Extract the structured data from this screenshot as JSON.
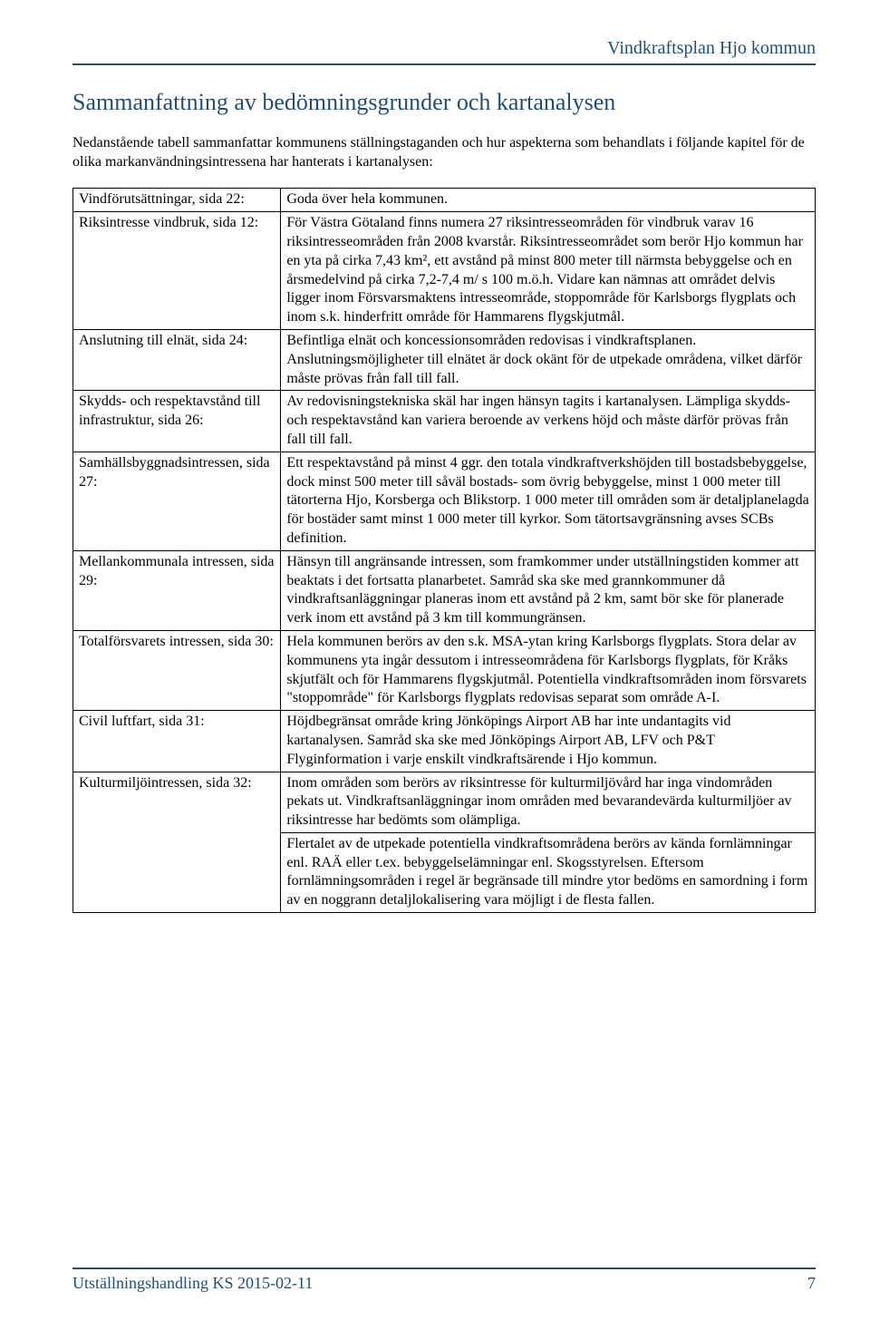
{
  "colors": {
    "accent": "#1e4e79",
    "text": "#000000",
    "background": "#ffffff",
    "border": "#000000"
  },
  "typography": {
    "body_font": "Times New Roman",
    "body_size_pt": 12,
    "h1_size_pt": 20,
    "header_size_pt": 15
  },
  "header": {
    "doc_title": "Vindkraftsplan Hjo kommun"
  },
  "section": {
    "title": "Sammanfattning av bedömningsgrunder och kartanalysen",
    "intro": "Nedanstående tabell sammanfattar kommunens ställningstaganden och hur aspekterna som behandlats i följande kapitel för de olika markanvändningsintressena har hanterats i kartanalysen:"
  },
  "table": {
    "rows": [
      {
        "left": "Vindförutsättningar, sida 22:",
        "right": "Goda över hela kommunen."
      },
      {
        "left": "Riksintresse vindbruk, sida 12:",
        "right": "För Västra Götaland finns numera 27 riksintresseområden för vindbruk varav 16 riksintresseområden från 2008 kvarstår. Riksintresseområdet som berör Hjo kommun har en yta på cirka 7,43 km², ett avstånd på minst 800 meter till närmsta bebyggelse och en årsmedelvind på cirka 7,2-7,4 m/ s 100 m.ö.h. Vidare kan nämnas att området delvis ligger inom Försvarsmaktens intresseområde, stoppområde för Karlsborgs flygplats och inom s.k. hinderfritt område för Hammarens flygskjutmål."
      },
      {
        "left": "Anslutning till elnät, sida 24:",
        "right": "Befintliga elnät och koncessionsområden redovisas i vindkraftsplanen. Anslutningsmöjligheter till elnätet är dock okänt för de utpekade områdena, vilket därför måste prövas från fall till fall."
      },
      {
        "left": "Skydds- och respektavstånd till infrastruktur, sida 26:",
        "right": "Av redovisningstekniska skäl har ingen hänsyn tagits i kartanalysen. Lämpliga skydds- och respektavstånd kan variera beroende av verkens höjd och måste därför prövas från fall till fall."
      },
      {
        "left": "Samhällsbyggnadsintressen, sida 27:",
        "right": "Ett respektavstånd på minst 4 ggr. den totala vindkraftverkshöjden till bostadsbebyggelse, dock minst 500 meter till såväl bostads- som övrig bebyggelse, minst 1 000 meter till tätorterna Hjo, Korsberga och Blikstorp. 1 000 meter till områden som är detaljplanelagda för bostäder samt minst 1 000 meter till kyrkor. Som tätortsavgränsning avses SCBs definition."
      },
      {
        "left": "Mellankommunala intressen, sida 29:",
        "right": "Hänsyn till angränsande intressen, som framkommer under utställningstiden kommer att beaktats i det fortsatta planarbetet. Samråd ska ske med grannkommuner då vindkraftsanläggningar planeras inom ett avstånd på 2 km, samt bör ske  för planerade verk inom ett avstånd på 3 km till kommungränsen."
      },
      {
        "left": "Totalförsvarets intressen, sida 30:",
        "right": "Hela kommunen berörs av den s.k. MSA-ytan kring Karlsborgs flygplats. Stora delar av kommunens yta ingår dessutom i intresseområdena för Karlsborgs flygplats, för Kråks skjutfält och för Hammarens flygskjutmål. Potentiella vindkraftsområden inom försvarets \"stoppområde\" för Karlsborgs flygplats redovisas separat som område A-I."
      },
      {
        "left": "Civil luftfart, sida 31:",
        "right": "Höjdbegränsat område kring Jönköpings Airport AB har inte undantagits vid kartanalysen. Samråd ska ske med Jönköpings Airport AB, LFV och P&T Flyginformation i varje enskilt vindkraftsärende i Hjo kommun."
      },
      {
        "left": "Kulturmiljöintressen, sida 32:",
        "right": "Inom områden som berörs av riksintresse för kulturmiljövård har inga vindområden pekats ut. Vindkraftsanläggningar inom områden med bevarandevärda kulturmiljöer av riksintresse har bedömts som olämpliga."
      },
      {
        "left": "",
        "right": "Flertalet av de utpekade potentiella vindkraftsområdena berörs av kända fornlämningar enl. RAÄ eller t.ex. bebyggelselämningar enl. Skogsstyrelsen. Eftersom fornlämningsområden i regel är begränsade till mindre ytor bedöms en samordning i form av en noggrann detaljlokalisering vara möjligt i de flesta fallen."
      }
    ]
  },
  "footer": {
    "left_text": "Utställningshandling KS 2015-02-11",
    "page_number": "7"
  }
}
